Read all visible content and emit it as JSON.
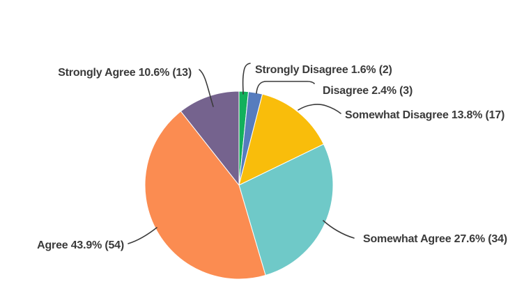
{
  "chart_data": {
    "type": "pie",
    "title": "",
    "legend_position": "none",
    "label_style": "outside-with-leader-lines",
    "order": "clockwise-from-12-oclock",
    "categories": [
      "Strongly Disagree",
      "Disagree",
      "Somewhat Disagree",
      "Somewhat Agree",
      "Agree",
      "Strongly Agree"
    ],
    "values": [
      1.6,
      2.4,
      13.8,
      27.6,
      43.9,
      10.6
    ],
    "counts": [
      2,
      3,
      17,
      34,
      54,
      13
    ],
    "slices": [
      {
        "label": "Strongly Disagree",
        "pct": 1.6,
        "count": 2,
        "color": "#13b05c",
        "label_text": "Strongly Disagree 1.6% (2)"
      },
      {
        "label": "Disagree",
        "pct": 2.4,
        "count": 3,
        "color": "#567cbe",
        "label_text": "Disagree 2.4% (3)"
      },
      {
        "label": "Somewhat Disagree",
        "pct": 13.8,
        "count": 17,
        "color": "#f9bd0b",
        "label_text": "Somewhat Disagree 13.8% (17)"
      },
      {
        "label": "Somewhat Agree",
        "pct": 27.6,
        "count": 34,
        "color": "#6fc9c8",
        "label_text": "Somewhat Agree 27.6% (34)"
      },
      {
        "label": "Agree",
        "pct": 43.9,
        "count": 54,
        "color": "#fb8c51",
        "label_text": "Agree 43.9% (54)"
      },
      {
        "label": "Strongly Agree",
        "pct": 10.6,
        "count": 13,
        "color": "#75638e",
        "label_text": "Strongly Agree 10.6% (13)"
      }
    ]
  },
  "colors": {
    "background": "#ffffff",
    "label_text": "#3a3a3a",
    "leader_line": "#3a3a3a",
    "slice_border": "#ffffff"
  }
}
